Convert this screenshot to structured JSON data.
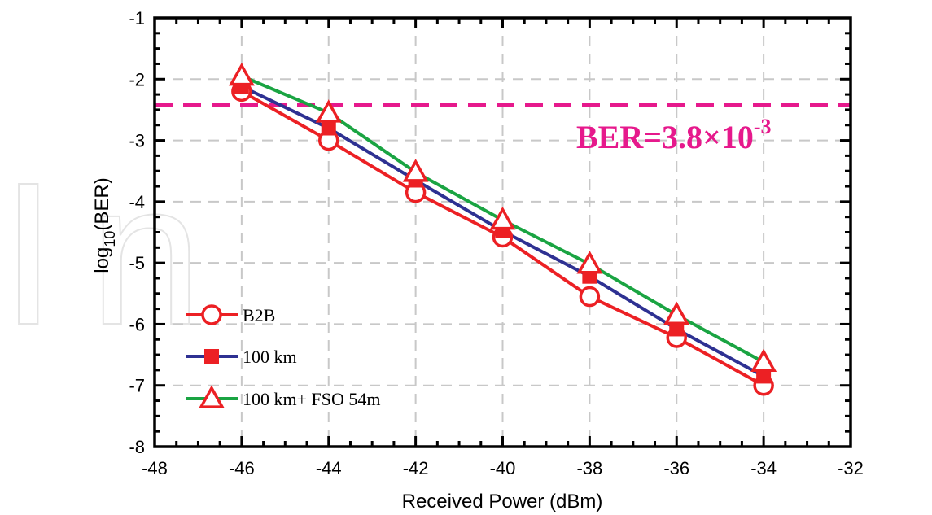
{
  "chart_data": {
    "type": "line",
    "xlabel": "Received Power (dBm)",
    "ylabel_base": "log",
    "ylabel_sub": "10",
    "ylabel_rest": "(BER)",
    "xlim": [
      -48,
      -32
    ],
    "ylim": [
      -8,
      -1
    ],
    "xticks": [
      -48,
      -46,
      -44,
      -42,
      -40,
      -38,
      -36,
      -34,
      -32
    ],
    "yticks": [
      -8,
      -7,
      -6,
      -5,
      -4,
      -3,
      -2,
      -1
    ],
    "grid": true,
    "legend_position": "bottom-left",
    "x": [
      -46,
      -44,
      -42,
      -40,
      -38,
      -36,
      -34
    ],
    "series": [
      {
        "name": "B2B",
        "color": "#ec2024",
        "line_color": "#ec2024",
        "marker": "circle-open",
        "values": [
          -2.2,
          -3.0,
          -3.85,
          -4.58,
          -5.55,
          -6.22,
          -7.0
        ]
      },
      {
        "name": "100 km",
        "color": "#ec2024",
        "line_color": "#2e3192",
        "marker": "square-filled",
        "values": [
          -2.12,
          -2.8,
          -3.65,
          -4.48,
          -5.22,
          -6.08,
          -6.85
        ]
      },
      {
        "name": "100 km+ FSO 54m",
        "color": "#ec2024",
        "line_color": "#1aa442",
        "marker": "triangle-open",
        "values": [
          -1.95,
          -2.55,
          -3.52,
          -4.3,
          -5.02,
          -5.85,
          -6.62
        ]
      }
    ],
    "threshold": {
      "value": -2.42,
      "color": "#e6198c",
      "label_main": "BER=3.8×10",
      "label_exp": "-3"
    }
  },
  "watermark": {
    "text": "In",
    "color": "#e4e4e4"
  }
}
